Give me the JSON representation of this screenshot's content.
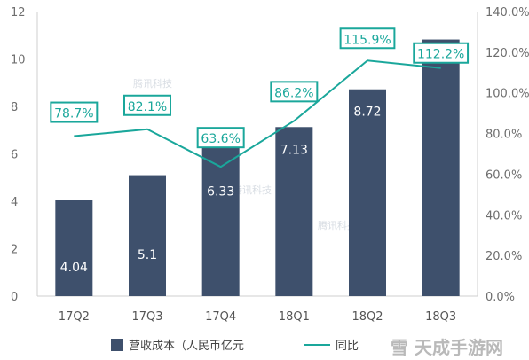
{
  "chart_data": {
    "type": "bar",
    "categories": [
      "17Q2",
      "17Q3",
      "17Q4",
      "18Q1",
      "18Q2",
      "18Q3"
    ],
    "series": [
      {
        "name": "营收成本（人民币亿元",
        "type": "bar",
        "axis": "left",
        "values": [
          4.04,
          5.1,
          6.33,
          7.13,
          8.72,
          10.82
        ],
        "labels": [
          "4.04",
          "5.1",
          "6.33",
          "7.13",
          "8.72",
          ""
        ],
        "color": "#3e506c"
      },
      {
        "name": "同比",
        "type": "line",
        "axis": "right",
        "values": [
          78.7,
          82.1,
          63.6,
          86.2,
          115.9,
          112.2
        ],
        "labels": [
          "78.7%",
          "82.1%",
          "63.6%",
          "86.2%",
          "115.9%",
          "112.2%"
        ],
        "color": "#1aa79b"
      }
    ],
    "yleft": {
      "min": 0,
      "max": 12,
      "ticks": [
        "0",
        "2",
        "4",
        "6",
        "8",
        "10",
        "12"
      ]
    },
    "yright": {
      "min": 0,
      "max": 140,
      "ticks": [
        "0.0%",
        "20.0%",
        "40.0%",
        "60.0%",
        "80.0%",
        "100.0%",
        "120.0%",
        "140.0%"
      ]
    },
    "grid": false,
    "legend": "bottom",
    "watermark": "雪 天成手游网"
  }
}
